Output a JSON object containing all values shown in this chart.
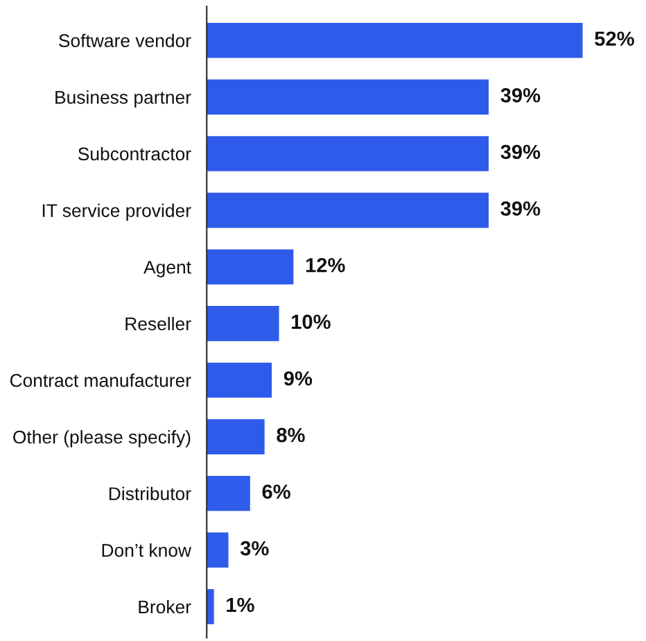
{
  "chart_data": {
    "type": "bar",
    "orientation": "horizontal",
    "categories": [
      "Software vendor",
      "Business partner",
      "Subcontractor",
      "IT service provider",
      "Agent",
      "Reseller",
      "Contract manufacturer",
      "Other (please specify)",
      "Distributor",
      "Don’t know",
      "Broker"
    ],
    "values": [
      52,
      39,
      39,
      39,
      12,
      10,
      9,
      8,
      6,
      3,
      1
    ],
    "value_labels": [
      "52%",
      "39%",
      "39%",
      "39%",
      "12%",
      "10%",
      "9%",
      "8%",
      "6%",
      "3%",
      "1%"
    ],
    "color": "#2f5bea",
    "grid": false,
    "legend": false,
    "tick_labels": "y"
  }
}
